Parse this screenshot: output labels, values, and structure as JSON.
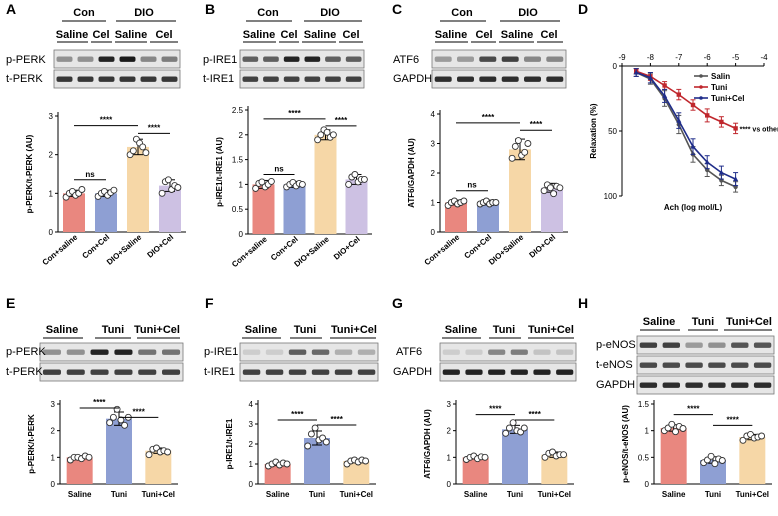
{
  "figure": {
    "colors": {
      "salmon": "#e9877f",
      "blue": "#8e9fd3",
      "orange": "#f6d7a7",
      "lavender": "#cdc1e3",
      "line_salin": "#555555",
      "line_tuni": "#c0272d",
      "line_tunicel": "#1f2d8a"
    },
    "panels": {
      "A": {
        "letter": "A",
        "header_groups": [
          "Con",
          "DIO"
        ],
        "lane_labels": [
          "Saline",
          "Cel",
          "Saline",
          "Cel"
        ],
        "blots": [
          "p-PERK",
          "t-PERK"
        ]
      },
      "B": {
        "letter": "B",
        "header_groups": [
          "Con",
          "DIO"
        ],
        "lane_labels": [
          "Saline",
          "Cel",
          "Saline",
          "Cel"
        ],
        "blots": [
          "p-IRE1",
          "t-IRE1"
        ]
      },
      "C": {
        "letter": "C",
        "header_groups": [
          "Con",
          "DIO"
        ],
        "lane_labels": [
          "Saline",
          "Cel",
          "Saline",
          "Cel"
        ],
        "blots": [
          "ATF6",
          "GAPDH"
        ]
      },
      "D": {
        "letter": "D"
      },
      "E": {
        "letter": "E",
        "lane_labels": [
          "Saline",
          "Tuni",
          "Tuni+Cel"
        ],
        "blots": [
          "p-PERK",
          "t-PERK"
        ]
      },
      "F": {
        "letter": "F",
        "lane_labels": [
          "Saline",
          "Tuni",
          "Tuni+Cel"
        ],
        "blots": [
          "p-IRE1",
          "t-IRE1"
        ]
      },
      "G": {
        "letter": "G",
        "lane_labels": [
          "Saline",
          "Tuni",
          "Tuni+Cel"
        ],
        "blots": [
          "ATF6",
          "GAPDH"
        ]
      },
      "H": {
        "letter": "H",
        "lane_labels": [
          "Saline",
          "Tuni",
          "Tuni+Cel"
        ],
        "blots": [
          "p-eNOS",
          "t-eNOS",
          "GAPDH"
        ]
      }
    }
  },
  "chart_data": [
    {
      "id": "A",
      "type": "bar",
      "ylabel": "p-PERK/t-PERK (AU)",
      "categories": [
        "Con+saline",
        "Con+Cel",
        "DIO+Saline",
        "DIO+Cel"
      ],
      "values": [
        1.0,
        1.0,
        2.2,
        1.2
      ],
      "errors": [
        0.08,
        0.08,
        0.2,
        0.15
      ],
      "points": [
        [
          0.9,
          1.0,
          1.05,
          0.95,
          1.0,
          1.1
        ],
        [
          0.92,
          1.0,
          1.05,
          0.95,
          1.02,
          1.08
        ],
        [
          2.0,
          2.1,
          2.4,
          2.3,
          2.2,
          2.05
        ],
        [
          1.0,
          1.3,
          1.35,
          1.1,
          1.2,
          1.15
        ]
      ],
      "ylim": [
        0,
        3
      ],
      "yticks": [
        0,
        1,
        2,
        3
      ],
      "rotate_xlabels": true,
      "colors": [
        "#e9877f",
        "#8e9fd3",
        "#f6d7a7",
        "#cdc1e3"
      ],
      "annotations": [
        {
          "from": 0,
          "to": 2,
          "level": 2.75,
          "label": "****"
        },
        {
          "from": 0,
          "to": 1,
          "level": 1.35,
          "label": "ns"
        },
        {
          "from": 2,
          "to": 3,
          "level": 2.55,
          "label": "****"
        }
      ]
    },
    {
      "id": "B",
      "type": "bar",
      "ylabel": "p-IRE1/t-IRE1 (AU)",
      "categories": [
        "Con+saline",
        "Con+Cel",
        "DIO+Saline",
        "DIO+Cel"
      ],
      "values": [
        1.0,
        1.0,
        2.0,
        1.1
      ],
      "errors": [
        0.08,
        0.06,
        0.1,
        0.1
      ],
      "points": [
        [
          0.92,
          1.02,
          1.05,
          0.95,
          1.0,
          1.06
        ],
        [
          0.95,
          1.0,
          1.04,
          0.97,
          1.02,
          1.0
        ],
        [
          1.9,
          2.0,
          2.1,
          2.05,
          1.95,
          2.0
        ],
        [
          1.0,
          1.15,
          1.2,
          1.05,
          1.1,
          1.1
        ]
      ],
      "ylim": [
        0,
        2.5
      ],
      "yticks": [
        0,
        0.5,
        1.0,
        1.5,
        2.0,
        2.5
      ],
      "rotate_xlabels": true,
      "colors": [
        "#e9877f",
        "#8e9fd3",
        "#f6d7a7",
        "#cdc1e3"
      ],
      "annotations": [
        {
          "from": 0,
          "to": 2,
          "level": 2.32,
          "label": "****"
        },
        {
          "from": 0,
          "to": 1,
          "level": 1.2,
          "label": "ns"
        },
        {
          "from": 2,
          "to": 3,
          "level": 2.18,
          "label": "****"
        }
      ]
    },
    {
      "id": "C",
      "type": "bar",
      "ylabel": "ATF6/GAPDH (AU)",
      "categories": [
        "Con+saline",
        "Con+Cel",
        "DIO+Saline",
        "DIO+Cel"
      ],
      "values": [
        1.0,
        1.0,
        2.8,
        1.5
      ],
      "errors": [
        0.08,
        0.08,
        0.35,
        0.15
      ],
      "points": [
        [
          0.9,
          1.0,
          1.05,
          0.95,
          1.0,
          1.05
        ],
        [
          0.95,
          1.0,
          1.05,
          0.95,
          1.0,
          1.0
        ],
        [
          2.5,
          2.9,
          3.1,
          2.6,
          2.7,
          3.0
        ],
        [
          1.4,
          1.6,
          1.5,
          1.3,
          1.55,
          1.5
        ]
      ],
      "ylim": [
        0,
        4
      ],
      "yticks": [
        0,
        1,
        2,
        3,
        4
      ],
      "rotate_xlabels": true,
      "colors": [
        "#e9877f",
        "#8e9fd3",
        "#f6d7a7",
        "#cdc1e3"
      ],
      "annotations": [
        {
          "from": 0,
          "to": 2,
          "level": 3.7,
          "label": "****"
        },
        {
          "from": 0,
          "to": 1,
          "level": 1.4,
          "label": "ns"
        },
        {
          "from": 2,
          "to": 3,
          "level": 3.45,
          "label": "****"
        }
      ]
    },
    {
      "id": "D",
      "type": "line",
      "xlabel": "Ach (log mol/L)",
      "ylabel": "Relaxation (%)",
      "xlim": [
        -9,
        -4
      ],
      "xticks": [
        -9,
        -8,
        -7,
        -6,
        -5,
        -4
      ],
      "ylim": [
        0,
        100
      ],
      "yticks": [
        0,
        50,
        100
      ],
      "y_inverted": true,
      "series": [
        {
          "name": "Salin",
          "color": "#555555",
          "marker": "circle",
          "x": [
            -8.5,
            -8,
            -7.5,
            -7,
            -6.5,
            -6,
            -5.5,
            -5
          ],
          "y": [
            5,
            10,
            25,
            45,
            68,
            80,
            88,
            93
          ],
          "err": [
            3,
            4,
            6,
            7,
            6,
            5,
            4,
            4
          ]
        },
        {
          "name": "Tuni",
          "color": "#c0272d",
          "marker": "square",
          "x": [
            -8.5,
            -8,
            -7.5,
            -7,
            -6.5,
            -6,
            -5.5,
            -5
          ],
          "y": [
            4,
            8,
            15,
            22,
            30,
            38,
            43,
            48
          ],
          "err": [
            2,
            3,
            3,
            4,
            4,
            5,
            4,
            4
          ]
        },
        {
          "name": "Tuni+Cel",
          "color": "#1f2d8a",
          "marker": "triangle",
          "x": [
            -8.5,
            -8,
            -7.5,
            -7,
            -6.5,
            -6,
            -5.5,
            -5
          ],
          "y": [
            5,
            9,
            23,
            42,
            62,
            74,
            82,
            87
          ],
          "err": [
            3,
            4,
            5,
            6,
            6,
            5,
            5,
            5
          ]
        }
      ],
      "annotation": "**** vs others"
    },
    {
      "id": "E",
      "type": "bar",
      "ylabel": "p-PERK/t-PERK",
      "categories": [
        "Saline",
        "Tuni",
        "Tuni+Cel"
      ],
      "values": [
        1.0,
        2.45,
        1.25
      ],
      "errors": [
        0.06,
        0.25,
        0.1
      ],
      "points": [
        [
          0.9,
          1.0,
          1.0,
          0.95,
          1.05,
          1.0
        ],
        [
          2.3,
          2.5,
          2.8,
          2.4,
          2.2,
          2.5
        ],
        [
          1.1,
          1.3,
          1.35,
          1.2,
          1.25,
          1.2
        ]
      ],
      "ylim": [
        0,
        3
      ],
      "yticks": [
        0,
        1,
        2,
        3
      ],
      "rotate_xlabels": false,
      "colors": [
        "#e9877f",
        "#8e9fd3",
        "#f6d7a7"
      ],
      "annotations": [
        {
          "from": 0,
          "to": 1,
          "level": 2.85,
          "label": "****"
        },
        {
          "from": 1,
          "to": 2,
          "level": 2.5,
          "label": "****"
        }
      ]
    },
    {
      "id": "F",
      "type": "bar",
      "ylabel": "p-IRE1/t-IRE1",
      "categories": [
        "Saline",
        "Tuni",
        "Tuni+Cel"
      ],
      "values": [
        1.0,
        2.3,
        1.15
      ],
      "errors": [
        0.08,
        0.35,
        0.08
      ],
      "points": [
        [
          0.9,
          1.0,
          1.1,
          0.95,
          1.05,
          1.0
        ],
        [
          1.9,
          2.5,
          2.8,
          2.2,
          2.3,
          2.1
        ],
        [
          1.0,
          1.15,
          1.2,
          1.1,
          1.2,
          1.15
        ]
      ],
      "ylim": [
        0,
        4
      ],
      "yticks": [
        0,
        1,
        2,
        3,
        4
      ],
      "rotate_xlabels": false,
      "colors": [
        "#e9877f",
        "#8e9fd3",
        "#f6d7a7"
      ],
      "annotations": [
        {
          "from": 0,
          "to": 1,
          "level": 3.2,
          "label": "****"
        },
        {
          "from": 1,
          "to": 2,
          "level": 2.95,
          "label": "****"
        }
      ]
    },
    {
      "id": "G",
      "type": "bar",
      "ylabel": "ATF6/GAPDH (AU)",
      "categories": [
        "Saline",
        "Tuni",
        "Tuni+Cel"
      ],
      "values": [
        1.0,
        2.05,
        1.1
      ],
      "errors": [
        0.06,
        0.15,
        0.1
      ],
      "points": [
        [
          0.92,
          1.0,
          1.05,
          0.95,
          1.02,
          1.0
        ],
        [
          1.9,
          2.1,
          2.3,
          2.0,
          1.95,
          2.1
        ],
        [
          1.0,
          1.15,
          1.2,
          1.05,
          1.1,
          1.1
        ]
      ],
      "ylim": [
        0,
        3
      ],
      "yticks": [
        0,
        1,
        2,
        3
      ],
      "rotate_xlabels": false,
      "colors": [
        "#e9877f",
        "#8e9fd3",
        "#f6d7a7"
      ],
      "annotations": [
        {
          "from": 0,
          "to": 1,
          "level": 2.6,
          "label": "****"
        },
        {
          "from": 1,
          "to": 2,
          "level": 2.4,
          "label": "****"
        }
      ]
    },
    {
      "id": "H",
      "type": "bar",
      "ylabel": "p-eNOS/t-eNOS (AU)",
      "categories": [
        "Saline",
        "Tuni",
        "Tuni+Cel"
      ],
      "values": [
        1.05,
        0.45,
        0.88
      ],
      "errors": [
        0.06,
        0.06,
        0.05
      ],
      "points": [
        [
          1.0,
          1.05,
          1.12,
          0.98,
          1.08,
          1.04
        ],
        [
          0.4,
          0.45,
          0.52,
          0.38,
          0.47,
          0.44
        ],
        [
          0.82,
          0.9,
          0.93,
          0.86,
          0.88,
          0.9
        ]
      ],
      "ylim": [
        0,
        1.5
      ],
      "yticks": [
        0,
        0.5,
        1.0,
        1.5
      ],
      "rotate_xlabels": false,
      "colors": [
        "#e9877f",
        "#8e9fd3",
        "#f6d7a7"
      ],
      "annotations": [
        {
          "from": 0,
          "to": 1,
          "level": 1.3,
          "label": "****"
        },
        {
          "from": 1,
          "to": 2,
          "level": 1.1,
          "label": "****"
        }
      ]
    }
  ]
}
